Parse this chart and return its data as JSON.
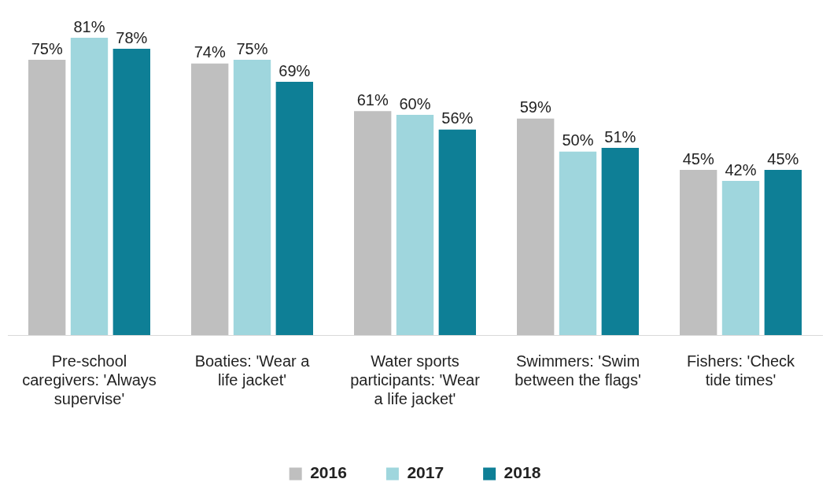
{
  "chart_data": {
    "type": "bar",
    "categories": [
      "Pre-school caregivers: 'Always supervise'",
      "Boaties: 'Wear a life jacket'",
      "Water sports participants: 'Wear a life jacket'",
      "Swimmers: 'Swim between the flags'",
      "Fishers: 'Check tide times'"
    ],
    "series": [
      {
        "name": "2016",
        "color": "#bfbfbf",
        "values": [
          75,
          74,
          61,
          59,
          45
        ],
        "value_labels": [
          "75%",
          "74%",
          "61%",
          "59%",
          "45%"
        ]
      },
      {
        "name": "2017",
        "color": "#9fd6dd",
        "values": [
          81,
          75,
          60,
          50,
          42
        ],
        "value_labels": [
          "81%",
          "75%",
          "60%",
          "50%",
          "42%"
        ]
      },
      {
        "name": "2018",
        "color": "#0e7f96",
        "values": [
          78,
          69,
          56,
          51,
          45
        ],
        "value_labels": [
          "78%",
          "69%",
          "56%",
          "51%",
          "45%"
        ]
      }
    ],
    "legend": "bottom",
    "grid": false
  }
}
